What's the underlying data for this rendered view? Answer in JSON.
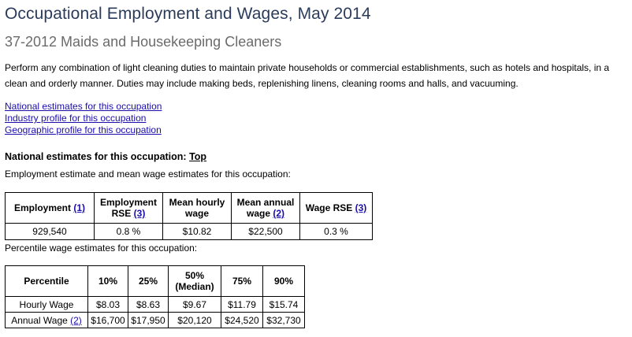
{
  "title": "Occupational Employment and Wages, May 2014",
  "subtitle": "37-2012 Maids and Housekeeping Cleaners",
  "description": "Perform any combination of light cleaning duties to maintain private households or commercial establishments, such as hotels and hospitals, in a clean and orderly manner. Duties may include making beds, replenishing linens, cleaning rooms and halls, and vacuuming.",
  "links": [
    "National estimates for this occupation",
    "Industry profile for this occupation",
    "Geographic profile for this occupation"
  ],
  "national": {
    "heading": "National estimates for this occupation:",
    "top_link": "Top",
    "employment_intro": "Employment estimate and mean wage estimates for this occupation:",
    "headers": {
      "employment": "Employment",
      "employment_fn": "(1)",
      "employment_rse": "Employment RSE",
      "employment_rse_fn": "(3)",
      "mean_hourly": "Mean hourly wage",
      "mean_annual": "Mean annual wage",
      "mean_annual_fn": "(2)",
      "wage_rse": "Wage RSE",
      "wage_rse_fn": "(3)"
    },
    "row": {
      "employment": "929,540",
      "employment_rse": "0.8 %",
      "mean_hourly": "$10.82",
      "mean_annual": "$22,500",
      "wage_rse": "0.3 %"
    },
    "percentile_intro": "Percentile wage estimates for this occupation:",
    "percentile_headers": [
      "Percentile",
      "10%",
      "25%",
      "50%\n(Median)",
      "75%",
      "90%"
    ],
    "hourly_label": "Hourly Wage",
    "hourly": [
      "$8.03",
      "$8.63",
      "$9.67",
      "$11.79",
      "$15.74"
    ],
    "annual_label": "Annual Wage",
    "annual_fn": "(2)",
    "annual": [
      "$16,700",
      "$17,950",
      "$20,120",
      "$24,520",
      "$32,730"
    ]
  }
}
